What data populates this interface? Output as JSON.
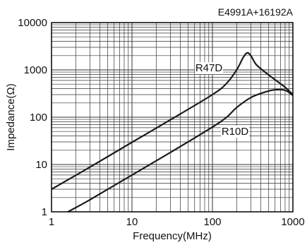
{
  "chart_data": {
    "type": "line",
    "annotation": "E4991A+16192A",
    "xlabel": "Frequency(MHz)",
    "ylabel": "Impedance(Ω)",
    "x_scale": "log",
    "y_scale": "log",
    "xlim": [
      1,
      1000
    ],
    "ylim": [
      1,
      10000
    ],
    "x_ticks": [
      1,
      10,
      100,
      1000
    ],
    "x_tick_labels": [
      "1",
      "10",
      "100",
      "1000"
    ],
    "y_ticks": [
      1,
      10,
      100,
      1000,
      10000
    ],
    "y_tick_labels": [
      "1",
      "10",
      "100",
      "1000",
      "10000"
    ],
    "grid": true,
    "series": [
      {
        "name": "R47D",
        "points": [
          [
            1,
            3
          ],
          [
            3,
            8.8
          ],
          [
            10,
            29.5
          ],
          [
            30,
            88
          ],
          [
            100,
            300
          ],
          [
            150,
            520
          ],
          [
            200,
            1000
          ],
          [
            240,
            1800
          ],
          [
            270,
            2300
          ],
          [
            300,
            2000
          ],
          [
            350,
            1300
          ],
          [
            450,
            900
          ],
          [
            600,
            620
          ],
          [
            800,
            430
          ],
          [
            1000,
            300
          ]
        ]
      },
      {
        "name": "R10D",
        "points": [
          [
            1.6,
            1
          ],
          [
            3,
            1.8
          ],
          [
            10,
            6
          ],
          [
            30,
            18
          ],
          [
            100,
            62
          ],
          [
            150,
            100
          ],
          [
            200,
            160
          ],
          [
            300,
            260
          ],
          [
            450,
            340
          ],
          [
            600,
            380
          ],
          [
            800,
            370
          ],
          [
            1000,
            290
          ]
        ]
      }
    ],
    "colors": {
      "line": "#1a1a1a",
      "grid": "#333333",
      "axis": "#000000"
    }
  }
}
